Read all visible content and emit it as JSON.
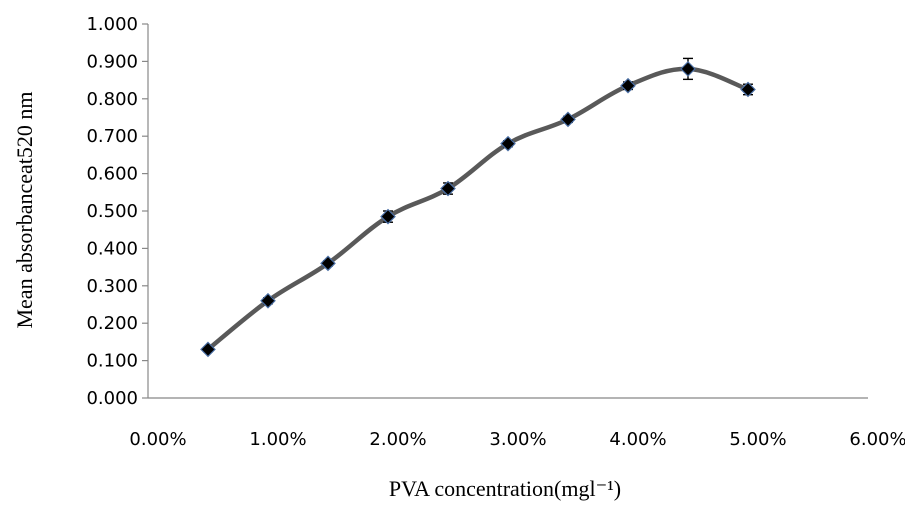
{
  "chart_data": {
    "type": "scatter",
    "title": "",
    "xlabel": "PVA concentration(mgl⁻¹)",
    "ylabel": "Mean absorbanceat520 nm",
    "xlim": [
      0,
      0.06
    ],
    "ylim": [
      0,
      1.0
    ],
    "x_ticks": [
      "0.00%",
      "1.00%",
      "2.00%",
      "3.00%",
      "4.00%",
      "5.00%",
      "6.00%"
    ],
    "y_ticks": [
      "0.000",
      "0.100",
      "0.200",
      "0.300",
      "0.400",
      "0.500",
      "0.600",
      "0.700",
      "0.800",
      "0.900",
      "1.000"
    ],
    "grid": false,
    "line_style": "smoothed",
    "colors": {
      "line": "#595959",
      "marker": "#000000",
      "marker_edge": "#4a6fa5",
      "axis": "#888888"
    },
    "series": [
      {
        "marker": "diamond",
        "x": [
          0.005,
          0.01,
          0.015,
          0.02,
          0.025,
          0.03,
          0.035,
          0.04,
          0.045,
          0.05
        ],
        "y": [
          0.13,
          0.26,
          0.36,
          0.485,
          0.56,
          0.68,
          0.745,
          0.835,
          0.88,
          0.825
        ],
        "error": [
          0.006,
          0.008,
          0.007,
          0.015,
          0.015,
          0.008,
          0.008,
          0.01,
          0.028,
          0.014
        ]
      }
    ]
  }
}
